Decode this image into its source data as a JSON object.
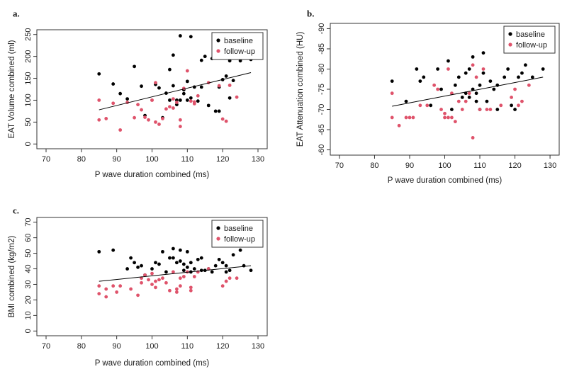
{
  "colors": {
    "baseline": "#000000",
    "followup": "#df536b",
    "frame": "#333333",
    "fit": "#000000"
  },
  "chart_data": [
    {
      "type": "scatter",
      "panel_label": "a.",
      "xlabel": "P wave duration combined (ms)",
      "ylabel": "EAT Volume combined (ml)",
      "xlim": [
        70,
        130
      ],
      "ylim": [
        0,
        250
      ],
      "yflip": false,
      "xticks": [
        70,
        80,
        90,
        100,
        110,
        120,
        130
      ],
      "yticks": [
        0,
        50,
        100,
        150,
        200,
        250
      ],
      "legend": {
        "position": "top-right",
        "entries": [
          "baseline",
          "follow-up"
        ]
      },
      "fit_line": {
        "x": [
          85,
          128
        ],
        "y": [
          78,
          163
        ]
      },
      "series": [
        {
          "name": "baseline",
          "x": [
            85,
            89,
            91,
            93,
            95,
            97,
            98,
            101,
            102,
            103,
            104,
            105,
            105,
            106,
            106,
            107,
            107,
            108,
            108,
            109,
            109,
            110,
            110,
            111,
            111,
            112,
            113,
            114,
            114,
            115,
            116,
            117,
            118,
            119,
            119,
            120,
            121,
            122,
            122,
            123,
            125,
            128
          ],
          "y": [
            160,
            137,
            115,
            103,
            177,
            132,
            65,
            136,
            128,
            60,
            116,
            170,
            100,
            203,
            133,
            100,
            90,
            247,
            100,
            115,
            124,
            100,
            143,
            105,
            245,
            130,
            98,
            191,
            130,
            200,
            88,
            195,
            75,
            75,
            130,
            147,
            155,
            105,
            190,
            145,
            190,
            193
          ]
        },
        {
          "name": "follow-up",
          "x": [
            85,
            85,
            87,
            89,
            91,
            93,
            95,
            96,
            97,
            98,
            99,
            100,
            100,
            101,
            101,
            102,
            103,
            104,
            105,
            106,
            106,
            107,
            108,
            108,
            109,
            110,
            111,
            112,
            112,
            113,
            116,
            119,
            120,
            121,
            122,
            124
          ],
          "y": [
            55,
            100,
            58,
            93,
            32,
            95,
            60,
            90,
            78,
            61,
            55,
            100,
            100,
            50,
            140,
            45,
            58,
            80,
            85,
            103,
            82,
            95,
            40,
            55,
            127,
            167,
            98,
            96,
            92,
            110,
            140,
            133,
            57,
            52,
            134,
            107
          ]
        }
      ]
    },
    {
      "type": "scatter",
      "panel_label": "b.",
      "xlabel": "P wave duration combined (ms)",
      "ylabel": "EAT Attenuation combined (HU)",
      "xlim": [
        70,
        130
      ],
      "ylim": [
        -90,
        -60
      ],
      "yflip": true,
      "xticks": [
        70,
        80,
        90,
        100,
        110,
        120,
        130
      ],
      "yticks": [
        -90,
        -85,
        -80,
        -75,
        -70,
        -65,
        -60
      ],
      "legend": {
        "position": "top-right",
        "entries": [
          "baseline",
          "follow-up"
        ]
      },
      "fit_line": {
        "x": [
          85,
          128
        ],
        "y": [
          -70.8,
          -78.0
        ]
      },
      "series": [
        {
          "name": "baseline",
          "x": [
            85,
            89,
            92,
            93,
            94,
            96,
            98,
            99,
            101,
            102,
            103,
            104,
            105,
            106,
            106,
            107,
            107,
            108,
            108,
            109,
            109,
            110,
            110,
            111,
            111,
            112,
            113,
            114,
            115,
            115,
            117,
            118,
            119,
            120,
            121,
            122,
            123,
            125,
            128
          ],
          "y": [
            -77,
            -72,
            -80,
            -77,
            -78,
            -71,
            -80,
            -75,
            -82,
            -70,
            -76,
            -78,
            -73,
            -79,
            -74,
            -73,
            -80,
            -83,
            -75,
            -74,
            -72,
            -76,
            -70,
            -79,
            -84,
            -72,
            -77,
            -75,
            -76,
            -70,
            -78,
            -80,
            -71,
            -70,
            -78,
            -79,
            -81,
            -78,
            -80
          ]
        },
        {
          "name": "follow-up",
          "x": [
            85,
            85,
            87,
            89,
            90,
            91,
            93,
            95,
            97,
            98,
            99,
            100,
            100,
            101,
            101,
            102,
            102,
            103,
            104,
            105,
            106,
            107,
            108,
            108,
            109,
            110,
            111,
            112,
            113,
            116,
            119,
            120,
            121,
            122,
            124
          ],
          "y": [
            -74,
            -68,
            -66,
            -68,
            -68,
            -68,
            -71,
            -71,
            -76,
            -75,
            -70,
            -68,
            -69,
            -80,
            -68,
            -68,
            -74,
            -67,
            -72,
            -70,
            -72,
            -74,
            -63,
            -81,
            -78,
            -70,
            -80,
            -70,
            -70,
            -71,
            -73,
            -75,
            -71,
            -72,
            -76
          ]
        }
      ]
    },
    {
      "type": "scatter",
      "panel_label": "c.",
      "xlabel": "P wave duration combined (ms)",
      "ylabel": "BMI combined (kg/m2)",
      "xlim": [
        70,
        130
      ],
      "ylim": [
        0,
        70
      ],
      "yflip": false,
      "xticks": [
        70,
        80,
        90,
        100,
        110,
        120,
        130
      ],
      "yticks": [
        0,
        10,
        20,
        30,
        40,
        50,
        60,
        70
      ],
      "legend": {
        "position": "top-right",
        "entries": [
          "baseline",
          "follow-up"
        ]
      },
      "fit_line": {
        "x": [
          85,
          128
        ],
        "y": [
          32,
          42
        ]
      },
      "series": [
        {
          "name": "baseline",
          "x": [
            85,
            89,
            93,
            94,
            95,
            96,
            97,
            98,
            100,
            101,
            102,
            103,
            104,
            105,
            106,
            106,
            107,
            108,
            108,
            109,
            109,
            110,
            110,
            111,
            111,
            112,
            113,
            114,
            114,
            115,
            116,
            117,
            118,
            119,
            120,
            121,
            121,
            122,
            123,
            125,
            126,
            128
          ],
          "y": [
            51,
            52,
            40,
            47,
            44,
            41,
            42,
            36,
            40,
            44,
            43,
            51,
            38,
            47,
            53,
            47,
            44,
            52,
            45,
            39,
            43,
            41,
            51,
            38,
            44,
            40,
            46,
            47,
            39,
            39,
            40,
            38,
            42,
            46,
            44,
            38,
            42,
            39,
            49,
            52,
            42,
            39
          ]
        },
        {
          "name": "follow-up",
          "x": [
            85,
            85,
            87,
            87,
            89,
            90,
            91,
            94,
            96,
            97,
            97,
            98,
            99,
            100,
            100,
            101,
            101,
            102,
            103,
            104,
            105,
            106,
            107,
            107,
            108,
            108,
            109,
            110,
            111,
            111,
            112,
            113,
            116,
            120,
            121,
            122,
            124
          ],
          "y": [
            24,
            29,
            22,
            27,
            29,
            25,
            29,
            27,
            23,
            31,
            34,
            36,
            33,
            37,
            30,
            28,
            32,
            33,
            34,
            31,
            26,
            38,
            25,
            27,
            29,
            34,
            35,
            38,
            26,
            28,
            35,
            38,
            40,
            29,
            32,
            34,
            34
          ]
        }
      ]
    }
  ]
}
